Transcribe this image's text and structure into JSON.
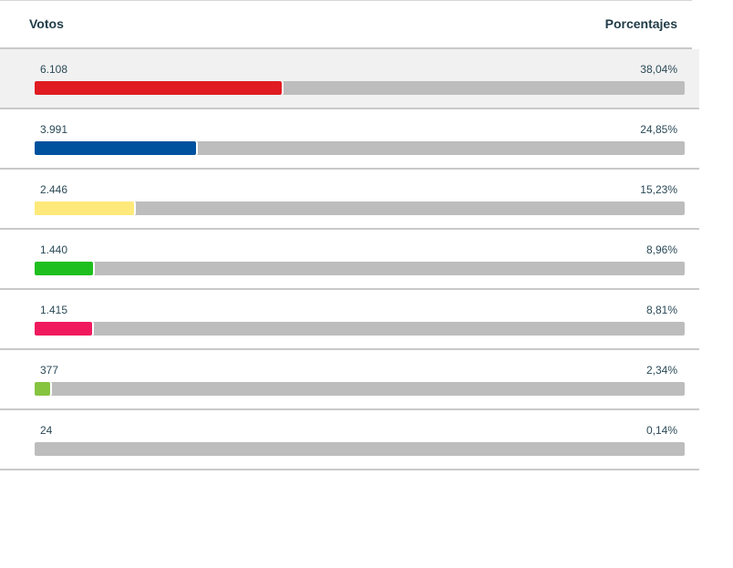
{
  "header": {
    "votes_label": "Votos",
    "percent_label": "Porcentajes"
  },
  "chart_data": {
    "type": "bar",
    "orientation": "horizontal",
    "title": "",
    "xlabel": "",
    "ylabel": "",
    "xlim": [
      0,
      100
    ],
    "rows": [
      {
        "votes": "6.108",
        "percent_label": "38,04%",
        "percent": 38.04,
        "color": "#e01b22"
      },
      {
        "votes": "3.991",
        "percent_label": "24,85%",
        "percent": 24.85,
        "color": "#00529f"
      },
      {
        "votes": "2.446",
        "percent_label": "15,23%",
        "percent": 15.23,
        "color": "#ffe97a"
      },
      {
        "votes": "1.440",
        "percent_label": "8,96%",
        "percent": 8.96,
        "color": "#1fbf1f"
      },
      {
        "votes": "1.415",
        "percent_label": "8,81%",
        "percent": 8.81,
        "color": "#f0195e"
      },
      {
        "votes": "377",
        "percent_label": "2,34%",
        "percent": 2.34,
        "color": "#86c440"
      },
      {
        "votes": "24",
        "percent_label": "0,14%",
        "percent": 0.14,
        "color": "#bdbdbd"
      }
    ]
  }
}
